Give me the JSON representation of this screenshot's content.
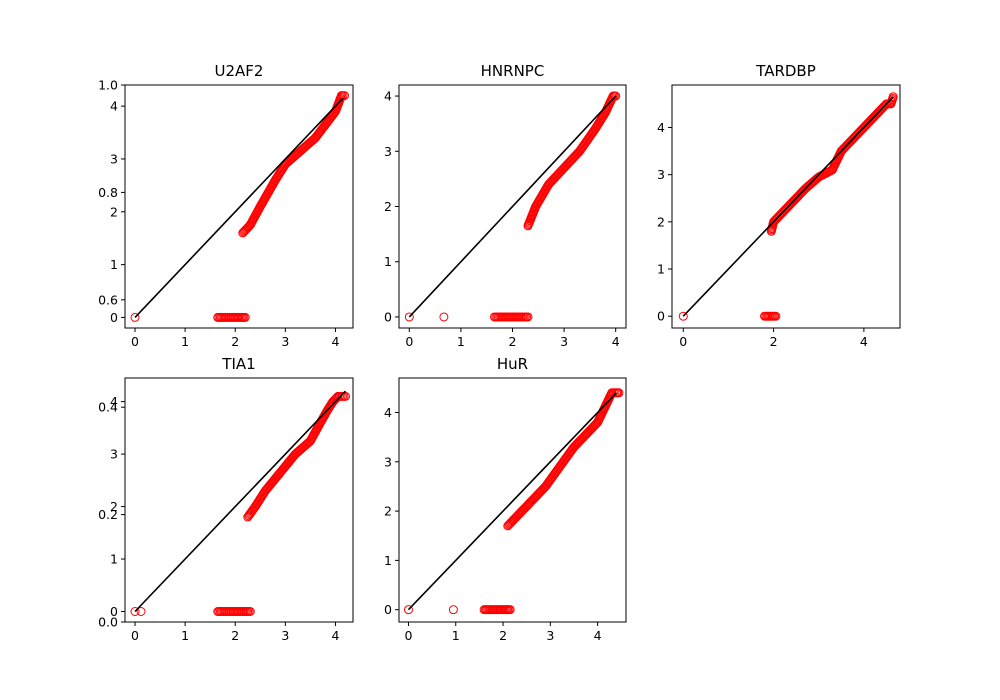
{
  "chart_data": [
    {
      "type": "scatter",
      "title": "U2AF2",
      "xlabel": "",
      "ylabel": "",
      "xlim": [
        -0.2,
        4.35
      ],
      "ylim": [
        -0.2,
        4.4
      ],
      "xticks": [
        0,
        1,
        2,
        3,
        4
      ],
      "yticks": [
        0,
        1,
        2,
        3,
        4
      ],
      "marker": {
        "style": "open-circle",
        "color": "#ff0000"
      },
      "reference_line": {
        "x": [
          0,
          4.15
        ],
        "y": [
          0,
          4.15
        ],
        "color": "#000000"
      },
      "x_cluster": {
        "y": 0,
        "x_from": 1.65,
        "x_to": 2.2
      },
      "series": [
        {
          "x": [
            0,
            2.15,
            2.3,
            2.5,
            2.8,
            3.0,
            3.3,
            3.6,
            3.8,
            4.0,
            4.08,
            4.12,
            4.18
          ],
          "y": [
            0,
            1.6,
            1.75,
            2.1,
            2.6,
            2.9,
            3.15,
            3.4,
            3.65,
            3.9,
            4.1,
            4.2,
            4.2
          ]
        }
      ]
    },
    {
      "type": "scatter",
      "title": "HNRNPC",
      "xlabel": "",
      "ylabel": "",
      "xlim": [
        -0.2,
        4.2
      ],
      "ylim": [
        -0.2,
        4.2
      ],
      "xticks": [
        0,
        1,
        2,
        3,
        4
      ],
      "yticks": [
        0,
        1,
        2,
        3,
        4
      ],
      "marker": {
        "style": "open-circle",
        "color": "#ff0000"
      },
      "reference_line": {
        "x": [
          0,
          4.0
        ],
        "y": [
          0,
          4.0
        ],
        "color": "#000000"
      },
      "x_cluster": {
        "y": 0,
        "x_from": 1.65,
        "x_to": 2.3
      },
      "series": [
        {
          "x": [
            0,
            0.67,
            2.3,
            2.45,
            2.7,
            3.0,
            3.3,
            3.6,
            3.8,
            3.9,
            3.95,
            4.0
          ],
          "y": [
            0,
            0,
            1.65,
            2.0,
            2.4,
            2.7,
            3.0,
            3.4,
            3.7,
            3.9,
            4.0,
            4.0
          ]
        }
      ]
    },
    {
      "type": "scatter",
      "title": "TARDBP",
      "xlabel": "",
      "ylabel": "",
      "xlim": [
        -0.25,
        4.8
      ],
      "ylim": [
        -0.25,
        4.9
      ],
      "xticks": [
        0,
        2,
        4
      ],
      "yticks": [
        0,
        1,
        2,
        3,
        4
      ],
      "marker": {
        "style": "open-circle",
        "color": "#ff0000"
      },
      "reference_line": {
        "x": [
          0,
          4.65
        ],
        "y": [
          0,
          4.65
        ],
        "color": "#000000"
      },
      "x_cluster": {
        "y": 0,
        "x_from": 1.8,
        "x_to": 2.05
      },
      "series": [
        {
          "x": [
            0,
            1.95,
            2.0,
            2.2,
            2.4,
            2.7,
            3.0,
            3.3,
            3.5,
            3.8,
            4.0,
            4.3,
            4.5,
            4.6,
            4.65
          ],
          "y": [
            0,
            1.8,
            2.0,
            2.2,
            2.4,
            2.7,
            2.95,
            3.1,
            3.5,
            3.8,
            4.0,
            4.3,
            4.5,
            4.5,
            4.65
          ]
        }
      ]
    },
    {
      "type": "scatter",
      "title": "TIA1",
      "xlabel": "",
      "ylabel": "",
      "xlim": [
        -0.2,
        4.35
      ],
      "ylim": [
        -0.2,
        4.45
      ],
      "xticks": [
        0,
        1,
        2,
        3,
        4
      ],
      "yticks": [
        0,
        1,
        2,
        3,
        4
      ],
      "marker": {
        "style": "open-circle",
        "color": "#ff0000"
      },
      "reference_line": {
        "x": [
          0,
          4.2
        ],
        "y": [
          0,
          4.2
        ],
        "color": "#000000"
      },
      "x_cluster": {
        "y": 0,
        "x_from": 1.65,
        "x_to": 2.3
      },
      "series": [
        {
          "x": [
            0,
            0.12,
            2.25,
            2.4,
            2.6,
            2.9,
            3.2,
            3.5,
            3.7,
            3.85,
            3.95,
            4.05,
            4.2
          ],
          "y": [
            0,
            0,
            1.8,
            2.0,
            2.3,
            2.65,
            3.0,
            3.25,
            3.6,
            3.85,
            4.0,
            4.1,
            4.1
          ]
        }
      ]
    },
    {
      "type": "scatter",
      "title": "HuR",
      "xlabel": "",
      "ylabel": "",
      "xlim": [
        -0.2,
        4.6
      ],
      "ylim": [
        -0.25,
        4.7
      ],
      "xticks": [
        0,
        1,
        2,
        3,
        4
      ],
      "yticks": [
        0,
        1,
        2,
        3,
        4
      ],
      "marker": {
        "style": "open-circle",
        "color": "#ff0000"
      },
      "reference_line": {
        "x": [
          0,
          4.4
        ],
        "y": [
          0,
          4.4
        ],
        "color": "#000000"
      },
      "x_cluster": {
        "y": 0,
        "x_from": 1.6,
        "x_to": 2.15
      },
      "series": [
        {
          "x": [
            0,
            0.95,
            2.1,
            2.3,
            2.6,
            2.9,
            3.2,
            3.5,
            3.8,
            4.0,
            4.2,
            4.3,
            4.4,
            4.45
          ],
          "y": [
            0,
            0,
            1.7,
            1.9,
            2.2,
            2.5,
            2.9,
            3.3,
            3.6,
            3.8,
            4.2,
            4.4,
            4.4,
            4.4
          ]
        }
      ]
    }
  ],
  "background_axes": {
    "xlim": [
      0,
      1
    ],
    "ylim": [
      0,
      1
    ],
    "yticks": [
      0.0,
      0.2,
      0.4,
      0.6,
      0.8,
      1.0
    ],
    "ytick_labels": [
      "0.0",
      "0.2",
      "0.4",
      "0.6",
      "0.8",
      "1.0"
    ]
  }
}
